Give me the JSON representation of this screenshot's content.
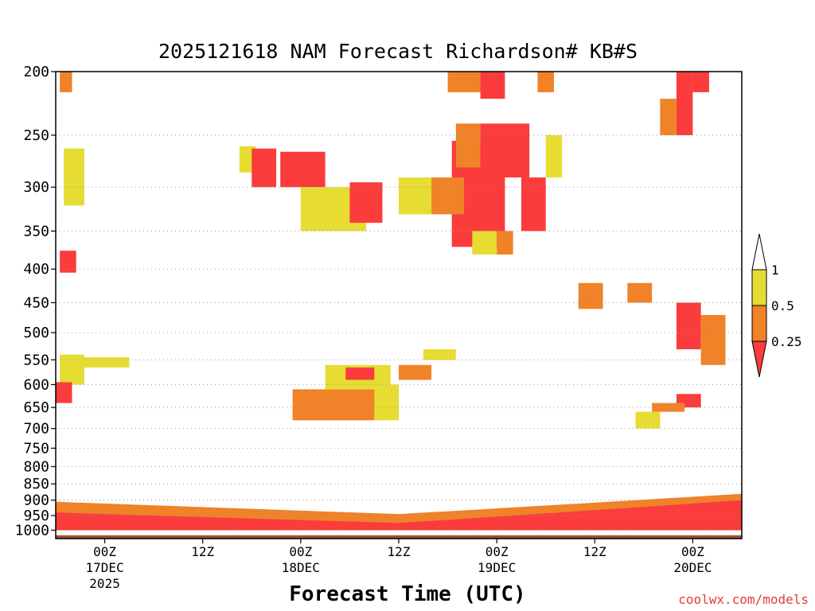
{
  "chart_data": {
    "type": "heatmap",
    "title": "2025121618 NAM Forecast Richardson# KB#S",
    "xlabel": "Forecast Time (UTC)",
    "y_axis": {
      "scale": "pressure",
      "reversed": true,
      "ylim": [
        1030,
        200
      ],
      "ticks": [
        "200",
        "250",
        "300",
        "350",
        "400",
        "450",
        "500",
        "550",
        "600",
        "650",
        "700",
        "750",
        "800",
        "850",
        "900",
        "950",
        "1000"
      ],
      "gridlines": "dotted"
    },
    "x_axis": {
      "ticks": [
        {
          "hours_label": "00Z",
          "date": "17DEC",
          "year": "2025"
        },
        {
          "hours_label": "12Z",
          "date": "",
          "year": ""
        },
        {
          "hours_label": "00Z",
          "date": "18DEC",
          "year": ""
        },
        {
          "hours_label": "12Z",
          "date": "",
          "year": ""
        },
        {
          "hours_label": "00Z",
          "date": "19DEC",
          "year": ""
        },
        {
          "hours_label": "12Z",
          "date": "",
          "year": ""
        },
        {
          "hours_label": "00Z",
          "date": "20DEC",
          "year": ""
        }
      ],
      "xlim_forecast_hours": [
        0,
        84
      ],
      "tick_forecast_hours": [
        6,
        18,
        30,
        42,
        54,
        66,
        78
      ]
    },
    "colorbar": {
      "labels": [
        "1",
        "0.5",
        "0.25"
      ],
      "bins": [
        {
          "range": "0.5-1",
          "color": "#e6dc32"
        },
        {
          "range": "0.25-0.5",
          "color": "#f08228"
        },
        {
          "range": "<0.25",
          "color": "#fa3c3c"
        }
      ],
      "above_max_color": "#ffffff"
    },
    "terrain_color": "#a0522d",
    "regions": [
      {
        "t0": 0.5,
        "t1": 3.5,
        "p0": 540,
        "p1": 600,
        "level": 1
      },
      {
        "t0": 3.5,
        "t1": 9.0,
        "p0": 545,
        "p1": 565,
        "level": 1
      },
      {
        "t0": 0.0,
        "t1": 2.0,
        "p0": 595,
        "p1": 640,
        "level": 3
      },
      {
        "t0": 0.5,
        "t1": 2.5,
        "p0": 375,
        "p1": 405,
        "level": 3
      },
      {
        "t0": 1.0,
        "t1": 3.5,
        "p0": 262,
        "p1": 320,
        "level": 1
      },
      {
        "t0": 0.5,
        "t1": 2.0,
        "p0": 200,
        "p1": 215,
        "level": 2
      },
      {
        "t0": 22.5,
        "t1": 24.5,
        "p0": 260,
        "p1": 285,
        "level": 1
      },
      {
        "t0": 24.0,
        "t1": 27.0,
        "p0": 262,
        "p1": 300,
        "level": 3
      },
      {
        "t0": 27.5,
        "t1": 33.0,
        "p0": 265,
        "p1": 300,
        "level": 3
      },
      {
        "t0": 30.0,
        "t1": 38.0,
        "p0": 300,
        "p1": 350,
        "level": 1
      },
      {
        "t0": 36.0,
        "t1": 40.0,
        "p0": 295,
        "p1": 340,
        "level": 3
      },
      {
        "t0": 29.0,
        "t1": 40.0,
        "p0": 610,
        "p1": 680,
        "level": 2
      },
      {
        "t0": 33.0,
        "t1": 41.0,
        "p0": 560,
        "p1": 610,
        "level": 1
      },
      {
        "t0": 35.5,
        "t1": 39.0,
        "p0": 565,
        "p1": 590,
        "level": 3
      },
      {
        "t0": 39.0,
        "t1": 42.0,
        "p0": 600,
        "p1": 680,
        "level": 1
      },
      {
        "t0": 42.0,
        "t1": 46.0,
        "p0": 560,
        "p1": 590,
        "level": 2
      },
      {
        "t0": 45.0,
        "t1": 49.0,
        "p0": 530,
        "p1": 550,
        "level": 1
      },
      {
        "t0": 48.5,
        "t1": 55.0,
        "p0": 255,
        "p1": 370,
        "level": 3
      },
      {
        "t0": 49.0,
        "t1": 52.0,
        "p0": 240,
        "p1": 280,
        "level": 2
      },
      {
        "t0": 52.0,
        "t1": 58.0,
        "p0": 240,
        "p1": 290,
        "level": 3
      },
      {
        "t0": 46.0,
        "t1": 50.0,
        "p0": 290,
        "p1": 330,
        "level": 2
      },
      {
        "t0": 42.0,
        "t1": 46.0,
        "p0": 290,
        "p1": 330,
        "level": 1
      },
      {
        "t0": 57.0,
        "t1": 60.0,
        "p0": 290,
        "p1": 350,
        "level": 3
      },
      {
        "t0": 60.0,
        "t1": 62.0,
        "p0": 250,
        "p1": 290,
        "level": 1
      },
      {
        "t0": 48.0,
        "t1": 53.0,
        "p0": 200,
        "p1": 215,
        "level": 2
      },
      {
        "t0": 52.0,
        "t1": 55.0,
        "p0": 200,
        "p1": 220,
        "level": 3
      },
      {
        "t0": 59.0,
        "t1": 61.0,
        "p0": 200,
        "p1": 215,
        "level": 2
      },
      {
        "t0": 51.0,
        "t1": 54.0,
        "p0": 350,
        "p1": 380,
        "level": 1
      },
      {
        "t0": 54.0,
        "t1": 56.0,
        "p0": 350,
        "p1": 380,
        "level": 2
      },
      {
        "t0": 76.0,
        "t1": 79.0,
        "p0": 450,
        "p1": 530,
        "level": 3
      },
      {
        "t0": 79.0,
        "t1": 82.0,
        "p0": 470,
        "p1": 560,
        "level": 2
      },
      {
        "t0": 76.0,
        "t1": 78.0,
        "p0": 200,
        "p1": 250,
        "level": 3
      },
      {
        "t0": 74.0,
        "t1": 76.0,
        "p0": 220,
        "p1": 250,
        "level": 2
      },
      {
        "t0": 78.0,
        "t1": 80.0,
        "p0": 200,
        "p1": 215,
        "level": 3
      },
      {
        "t0": 64.0,
        "t1": 67.0,
        "p0": 420,
        "p1": 460,
        "level": 2
      },
      {
        "t0": 70.0,
        "t1": 73.0,
        "p0": 420,
        "p1": 450,
        "level": 2
      },
      {
        "t0": 76.0,
        "t1": 79.0,
        "p0": 620,
        "p1": 650,
        "level": 3
      },
      {
        "t0": 73.0,
        "t1": 77.0,
        "p0": 640,
        "p1": 660,
        "level": 2
      },
      {
        "t0": 71.0,
        "t1": 74.0,
        "p0": 660,
        "p1": 700,
        "level": 1
      }
    ],
    "near_surface_layers": [
      {
        "p_top_left": 905,
        "p_top_mid": 945,
        "p_top_right": 880,
        "level": 2
      },
      {
        "p_top_left": 940,
        "p_top_mid": 975,
        "p_top_right": 900,
        "level": 3
      }
    ]
  },
  "credit": "coolwx.com/models"
}
